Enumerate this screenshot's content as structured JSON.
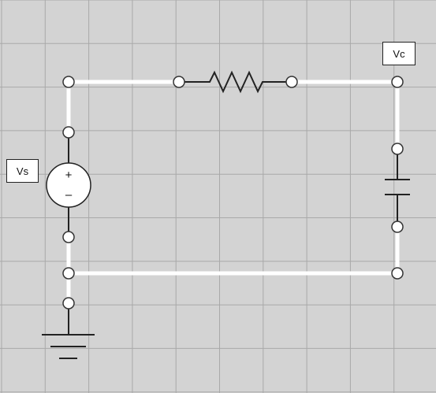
{
  "diagram": {
    "labels": {
      "vs": "Vs",
      "vc": "Vc"
    },
    "source_symbols": {
      "plus": "+",
      "minus": "–"
    },
    "components": [
      "voltage-source",
      "resistor",
      "capacitor",
      "ground"
    ],
    "colors": {
      "background": "#d3d3d3",
      "grid": "#a9a9a9",
      "wire": "#ffffff",
      "lead": "#222222",
      "terminal_fill": "#ffffff",
      "terminal_stroke": "#333333"
    }
  }
}
